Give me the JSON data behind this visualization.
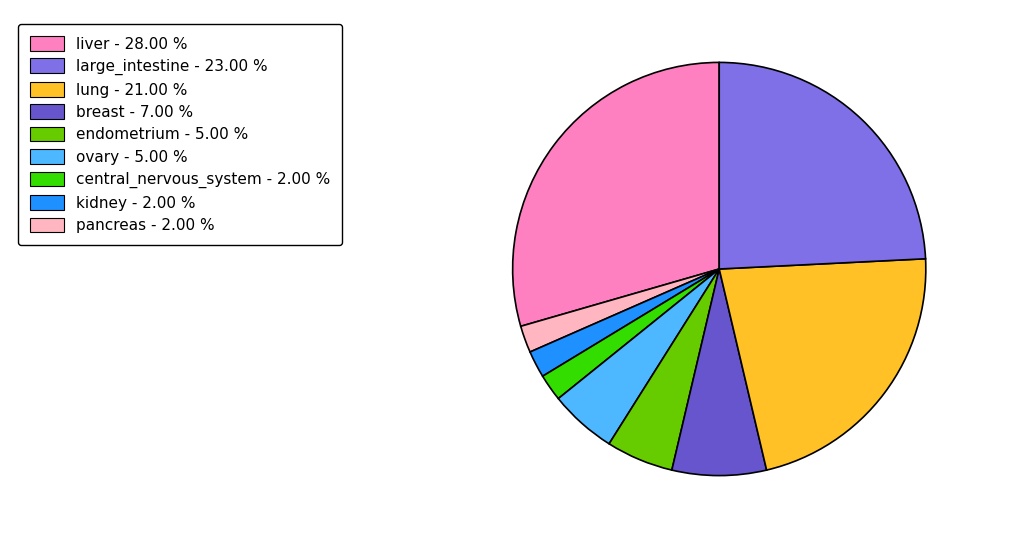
{
  "labels": [
    "liver",
    "pancreas",
    "kidney",
    "central_nervous_system",
    "ovary",
    "endometrium",
    "breast",
    "lung",
    "large_intestine"
  ],
  "values": [
    28.0,
    2.0,
    2.0,
    2.0,
    5.0,
    5.0,
    7.0,
    21.0,
    23.0
  ],
  "colors": [
    "#FF80C0",
    "#FFB6C1",
    "#1E90FF",
    "#33DD00",
    "#4DB8FF",
    "#66CC00",
    "#6655CC",
    "#FFC125",
    "#8070E8"
  ],
  "legend_labels": [
    "liver - 28.00 %",
    "large_intestine - 23.00 %",
    "lung - 21.00 %",
    "breast - 7.00 %",
    "endometrium - 5.00 %",
    "ovary - 5.00 %",
    "central_nervous_system - 2.00 %",
    "kidney - 2.00 %",
    "pancreas - 2.00 %"
  ],
  "legend_colors": [
    "#FF80C0",
    "#8070E8",
    "#FFC125",
    "#6655CC",
    "#66CC00",
    "#4DB8FF",
    "#33DD00",
    "#1E90FF",
    "#FFB6C1"
  ],
  "startangle": 90,
  "figsize": [
    10.13,
    5.38
  ],
  "dpi": 100
}
